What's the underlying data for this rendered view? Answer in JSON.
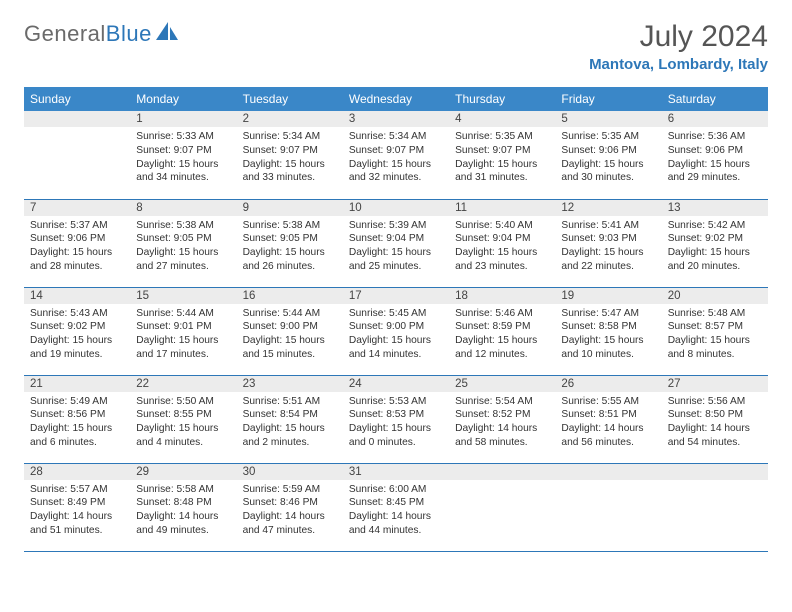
{
  "logo": {
    "part1": "General",
    "part2": "Blue"
  },
  "title": "July 2024",
  "location": "Mantova, Lombardy, Italy",
  "colors": {
    "header_bg": "#3a87c8",
    "rule": "#2d77b8",
    "daynum_bg": "#ececec",
    "title_color": "#555555",
    "location_color": "#2d77b8",
    "text_color": "#333333"
  },
  "weekdays": [
    "Sunday",
    "Monday",
    "Tuesday",
    "Wednesday",
    "Thursday",
    "Friday",
    "Saturday"
  ],
  "weeks": [
    [
      {
        "empty": true
      },
      {
        "num": "1",
        "sunrise": "5:33 AM",
        "sunset": "9:07 PM",
        "daylight": "15 hours and 34 minutes."
      },
      {
        "num": "2",
        "sunrise": "5:34 AM",
        "sunset": "9:07 PM",
        "daylight": "15 hours and 33 minutes."
      },
      {
        "num": "3",
        "sunrise": "5:34 AM",
        "sunset": "9:07 PM",
        "daylight": "15 hours and 32 minutes."
      },
      {
        "num": "4",
        "sunrise": "5:35 AM",
        "sunset": "9:07 PM",
        "daylight": "15 hours and 31 minutes."
      },
      {
        "num": "5",
        "sunrise": "5:35 AM",
        "sunset": "9:06 PM",
        "daylight": "15 hours and 30 minutes."
      },
      {
        "num": "6",
        "sunrise": "5:36 AM",
        "sunset": "9:06 PM",
        "daylight": "15 hours and 29 minutes."
      }
    ],
    [
      {
        "num": "7",
        "sunrise": "5:37 AM",
        "sunset": "9:06 PM",
        "daylight": "15 hours and 28 minutes."
      },
      {
        "num": "8",
        "sunrise": "5:38 AM",
        "sunset": "9:05 PM",
        "daylight": "15 hours and 27 minutes."
      },
      {
        "num": "9",
        "sunrise": "5:38 AM",
        "sunset": "9:05 PM",
        "daylight": "15 hours and 26 minutes."
      },
      {
        "num": "10",
        "sunrise": "5:39 AM",
        "sunset": "9:04 PM",
        "daylight": "15 hours and 25 minutes."
      },
      {
        "num": "11",
        "sunrise": "5:40 AM",
        "sunset": "9:04 PM",
        "daylight": "15 hours and 23 minutes."
      },
      {
        "num": "12",
        "sunrise": "5:41 AM",
        "sunset": "9:03 PM",
        "daylight": "15 hours and 22 minutes."
      },
      {
        "num": "13",
        "sunrise": "5:42 AM",
        "sunset": "9:02 PM",
        "daylight": "15 hours and 20 minutes."
      }
    ],
    [
      {
        "num": "14",
        "sunrise": "5:43 AM",
        "sunset": "9:02 PM",
        "daylight": "15 hours and 19 minutes."
      },
      {
        "num": "15",
        "sunrise": "5:44 AM",
        "sunset": "9:01 PM",
        "daylight": "15 hours and 17 minutes."
      },
      {
        "num": "16",
        "sunrise": "5:44 AM",
        "sunset": "9:00 PM",
        "daylight": "15 hours and 15 minutes."
      },
      {
        "num": "17",
        "sunrise": "5:45 AM",
        "sunset": "9:00 PM",
        "daylight": "15 hours and 14 minutes."
      },
      {
        "num": "18",
        "sunrise": "5:46 AM",
        "sunset": "8:59 PM",
        "daylight": "15 hours and 12 minutes."
      },
      {
        "num": "19",
        "sunrise": "5:47 AM",
        "sunset": "8:58 PM",
        "daylight": "15 hours and 10 minutes."
      },
      {
        "num": "20",
        "sunrise": "5:48 AM",
        "sunset": "8:57 PM",
        "daylight": "15 hours and 8 minutes."
      }
    ],
    [
      {
        "num": "21",
        "sunrise": "5:49 AM",
        "sunset": "8:56 PM",
        "daylight": "15 hours and 6 minutes."
      },
      {
        "num": "22",
        "sunrise": "5:50 AM",
        "sunset": "8:55 PM",
        "daylight": "15 hours and 4 minutes."
      },
      {
        "num": "23",
        "sunrise": "5:51 AM",
        "sunset": "8:54 PM",
        "daylight": "15 hours and 2 minutes."
      },
      {
        "num": "24",
        "sunrise": "5:53 AM",
        "sunset": "8:53 PM",
        "daylight": "15 hours and 0 minutes."
      },
      {
        "num": "25",
        "sunrise": "5:54 AM",
        "sunset": "8:52 PM",
        "daylight": "14 hours and 58 minutes."
      },
      {
        "num": "26",
        "sunrise": "5:55 AM",
        "sunset": "8:51 PM",
        "daylight": "14 hours and 56 minutes."
      },
      {
        "num": "27",
        "sunrise": "5:56 AM",
        "sunset": "8:50 PM",
        "daylight": "14 hours and 54 minutes."
      }
    ],
    [
      {
        "num": "28",
        "sunrise": "5:57 AM",
        "sunset": "8:49 PM",
        "daylight": "14 hours and 51 minutes."
      },
      {
        "num": "29",
        "sunrise": "5:58 AM",
        "sunset": "8:48 PM",
        "daylight": "14 hours and 49 minutes."
      },
      {
        "num": "30",
        "sunrise": "5:59 AM",
        "sunset": "8:46 PM",
        "daylight": "14 hours and 47 minutes."
      },
      {
        "num": "31",
        "sunrise": "6:00 AM",
        "sunset": "8:45 PM",
        "daylight": "14 hours and 44 minutes."
      },
      {
        "empty": true
      },
      {
        "empty": true
      },
      {
        "empty": true
      }
    ]
  ],
  "labels": {
    "sunrise_prefix": "Sunrise: ",
    "sunset_prefix": "Sunset: ",
    "daylight_prefix": "Daylight: "
  }
}
